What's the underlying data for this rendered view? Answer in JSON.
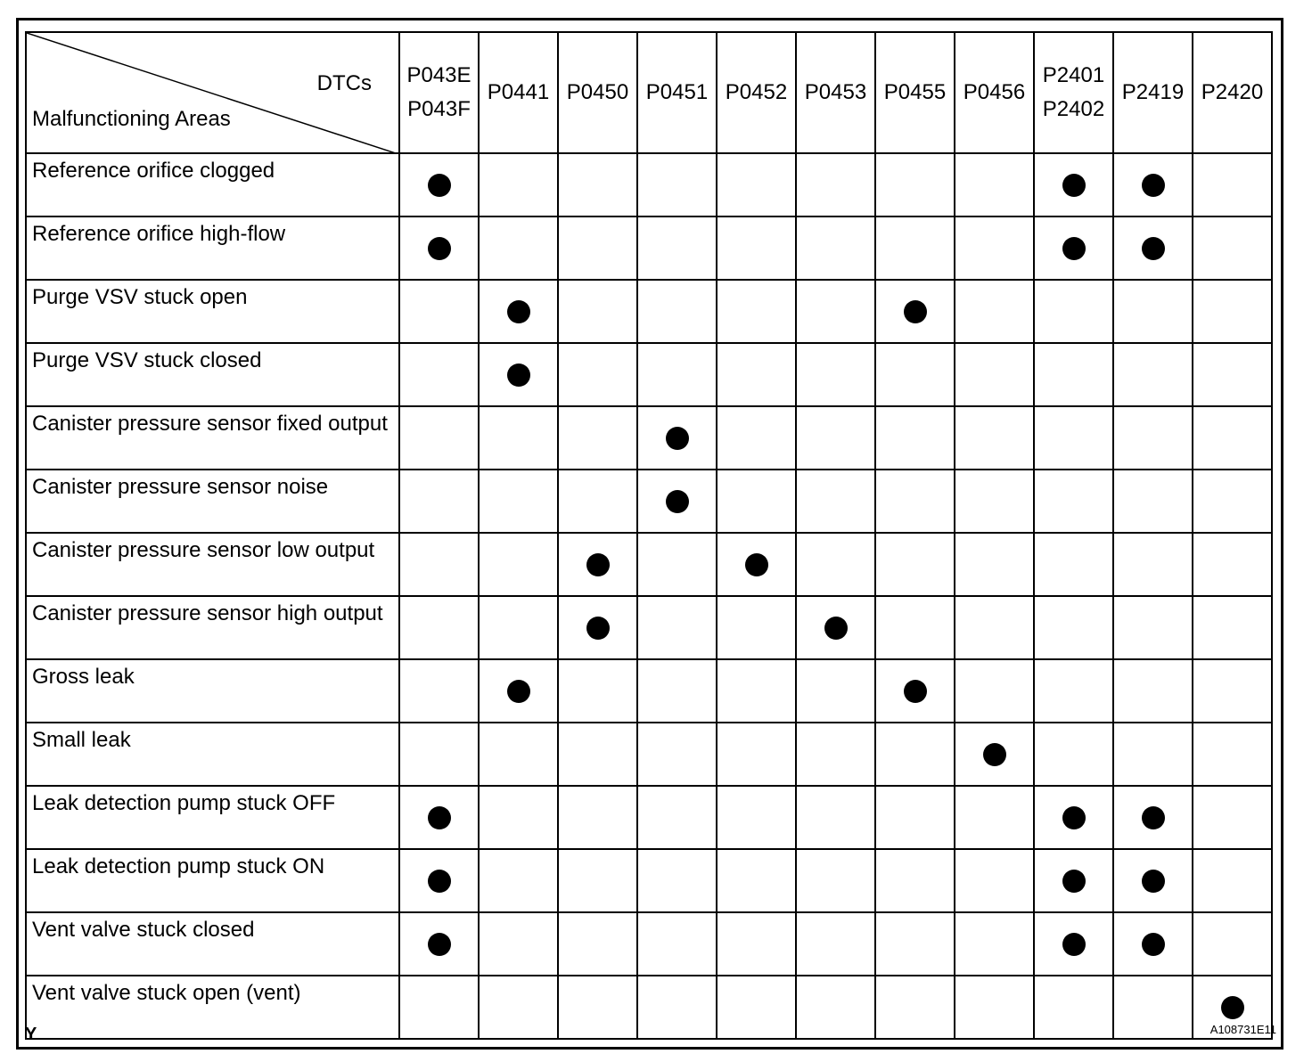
{
  "header": {
    "corner_top": "DTCs",
    "corner_bottom": "Malfunctioning Areas",
    "dtcs": [
      "P043E\nP043F",
      "P0441",
      "P0450",
      "P0451",
      "P0452",
      "P0453",
      "P0455",
      "P0456",
      "P2401\nP2402",
      "P2419",
      "P2420"
    ]
  },
  "rows": [
    {
      "area": "Reference orifice clogged",
      "marks": [
        0,
        8,
        9
      ]
    },
    {
      "area": "Reference orifice high-flow",
      "marks": [
        0,
        8,
        9
      ]
    },
    {
      "area": "Purge VSV stuck open",
      "marks": [
        1,
        6
      ]
    },
    {
      "area": "Purge VSV stuck closed",
      "marks": [
        1
      ]
    },
    {
      "area": "Canister pressure sensor fixed output",
      "marks": [
        3
      ]
    },
    {
      "area": "Canister pressure sensor noise",
      "marks": [
        3
      ]
    },
    {
      "area": "Canister pressure sensor low output",
      "marks": [
        2,
        4
      ]
    },
    {
      "area": "Canister pressure sensor high output",
      "marks": [
        2,
        5
      ]
    },
    {
      "area": "Gross leak",
      "marks": [
        1,
        6
      ]
    },
    {
      "area": "Small leak",
      "marks": [
        7
      ]
    },
    {
      "area": "Leak detection pump stuck OFF",
      "marks": [
        0,
        8,
        9
      ]
    },
    {
      "area": "Leak detection pump stuck ON",
      "marks": [
        0,
        8,
        9
      ]
    },
    {
      "area": "Vent valve stuck closed",
      "marks": [
        0,
        8,
        9
      ]
    },
    {
      "area": "Vent valve stuck open (vent)",
      "marks": [
        10
      ]
    }
  ],
  "footer": {
    "left": "Y",
    "right": "A108731E11"
  }
}
